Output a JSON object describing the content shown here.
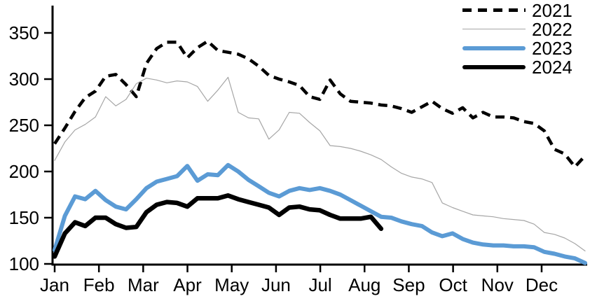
{
  "chart_data": {
    "type": "line",
    "title": "",
    "xlabel": "",
    "ylabel": "",
    "x_unit": "week-of-year",
    "x_axis": {
      "tick_labels": [
        "Jan",
        "Feb",
        "Mar",
        "Apr",
        "May",
        "Jun",
        "Jul",
        "Aug",
        "Sep",
        "Oct",
        "Nov",
        "Dec"
      ]
    },
    "y_axis": {
      "min": 100,
      "max": 350,
      "tick_step": 50,
      "ticks": [
        100,
        150,
        200,
        250,
        300,
        350
      ]
    },
    "grid": false,
    "legend_position": "top-right",
    "series": [
      {
        "name": "2021",
        "color": "#000000",
        "line_style": "dashed",
        "line_width": 4.5,
        "values": [
          230,
          247,
          265,
          280,
          287,
          303,
          305,
          294,
          281,
          317,
          333,
          340,
          340,
          323,
          334,
          341,
          331,
          329,
          327,
          322,
          314,
          304,
          300,
          297,
          293,
          281,
          278,
          299,
          284,
          276,
          275,
          274,
          272,
          271,
          268,
          264,
          270,
          276,
          268,
          263,
          269,
          258,
          264,
          259,
          259,
          258,
          254,
          252,
          244,
          224,
          219,
          205,
          217
        ]
      },
      {
        "name": "2022",
        "color": "#a6a6a6",
        "line_style": "solid",
        "line_width": 1.2,
        "values": [
          212,
          232,
          245,
          251,
          259,
          281,
          271,
          278,
          295,
          301,
          299,
          296,
          298,
          297,
          292,
          276,
          288,
          302,
          264,
          258,
          257,
          235,
          245,
          264,
          263,
          253,
          244,
          228,
          227,
          225,
          222,
          218,
          213,
          205,
          198,
          194,
          192,
          188,
          166,
          161,
          157,
          153,
          152,
          151,
          149,
          148,
          147,
          143,
          134,
          132,
          128,
          122,
          114
        ]
      },
      {
        "name": "2023",
        "color": "#5b9bd5",
        "line_style": "solid",
        "line_width": 6,
        "values": [
          115,
          152,
          173,
          170,
          179,
          169,
          162,
          159,
          170,
          182,
          189,
          192,
          195,
          206,
          190,
          197,
          196,
          207,
          200,
          191,
          184,
          177,
          173,
          179,
          182,
          180,
          182,
          179,
          175,
          169,
          163,
          157,
          151,
          150,
          146,
          143,
          141,
          134,
          130,
          133,
          127,
          123,
          121,
          120,
          120,
          119,
          119,
          118,
          113,
          111,
          108,
          106,
          101
        ]
      },
      {
        "name": "2024",
        "color": "#000000",
        "line_style": "solid",
        "line_width": 6.5,
        "values": [
          108,
          133,
          145,
          141,
          150,
          150,
          143,
          139,
          140,
          156,
          164,
          167,
          166,
          162,
          171,
          171,
          171,
          174,
          170,
          167,
          164,
          161,
          153,
          161,
          162,
          159,
          158,
          153,
          149,
          149,
          149,
          151,
          138
        ]
      }
    ]
  }
}
